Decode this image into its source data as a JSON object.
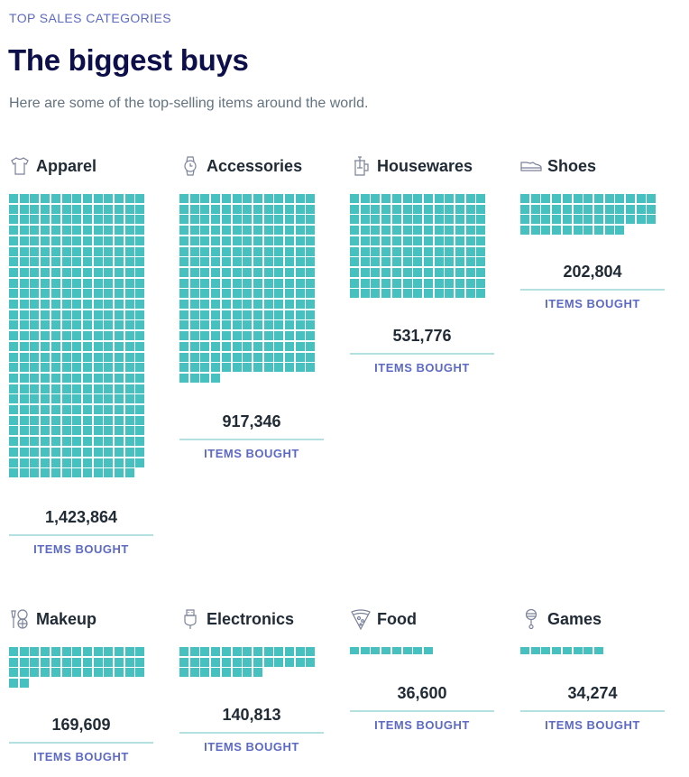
{
  "header": {
    "eyebrow": "TOP SALES CATEGORIES",
    "title": "The biggest buys",
    "subtitle": "Here are some of the top-selling items around the world."
  },
  "colors": {
    "square": "#47c1bf",
    "rule": "#b4e1e0",
    "accent": "#5c6ac4",
    "title": "#0d0f4a"
  },
  "chart_data": {
    "type": "waffle",
    "title": "The biggest buys",
    "subtitle": "Here are some of the top-selling items around the world.",
    "columns_per_row": 13,
    "unit_label": "ITEMS BOUGHT",
    "categories": [
      "Apparel",
      "Accessories",
      "Housewares",
      "Shoes",
      "Makeup",
      "Electronics",
      "Food",
      "Games"
    ],
    "values": [
      1423864,
      917346,
      531776,
      202804,
      169609,
      140813,
      36600,
      34274
    ],
    "value_labels": [
      "1,423,864",
      "917,346",
      "531,776",
      "202,804",
      "169,609",
      "140,813",
      "36,600",
      "34,274"
    ],
    "squares": [
      350,
      225,
      130,
      49,
      41,
      34,
      8,
      8
    ]
  },
  "cards": [
    {
      "name": "Apparel",
      "icon": "tshirt-icon",
      "value": "1,423,864",
      "label": "ITEMS BOUGHT",
      "squares": 350
    },
    {
      "name": "Accessories",
      "icon": "watch-icon",
      "value": "917,346",
      "label": "ITEMS BOUGHT",
      "squares": 225
    },
    {
      "name": "Housewares",
      "icon": "french-press-icon",
      "value": "531,776",
      "label": "ITEMS BOUGHT",
      "squares": 130
    },
    {
      "name": "Shoes",
      "icon": "shoe-icon",
      "value": "202,804",
      "label": "ITEMS BOUGHT",
      "squares": 49
    },
    {
      "name": "Makeup",
      "icon": "makeup-icon",
      "value": "169,609",
      "label": "ITEMS BOUGHT",
      "squares": 41
    },
    {
      "name": "Electronics",
      "icon": "usb-icon",
      "value": "140,813",
      "label": "ITEMS BOUGHT",
      "squares": 34
    },
    {
      "name": "Food",
      "icon": "pizza-icon",
      "value": "36,600",
      "label": "ITEMS BOUGHT",
      "squares": 8
    },
    {
      "name": "Games",
      "icon": "rattle-icon",
      "value": "34,274",
      "label": "ITEMS BOUGHT",
      "squares": 8
    }
  ]
}
